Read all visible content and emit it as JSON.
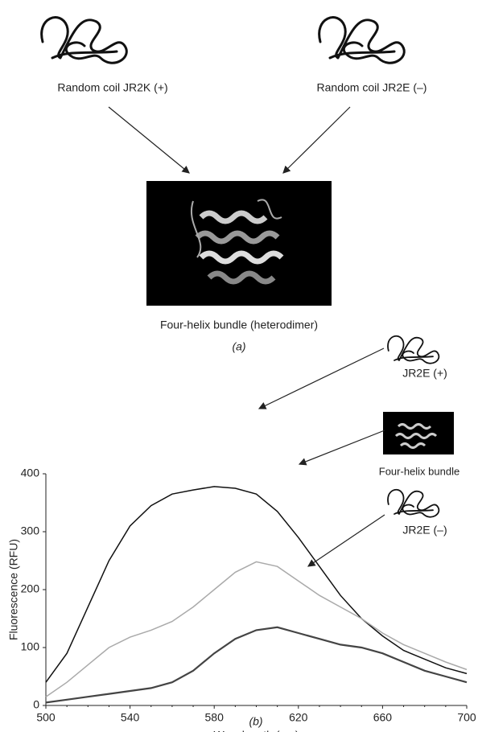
{
  "diagram": {
    "labels": [
      "Random coil JR2K (+)",
      "Random coil JR2E (–)",
      "Four-helix bundle (heterodimer)"
    ],
    "caption": "(a)"
  },
  "chart_data": {
    "type": "line",
    "x_label": "Wavelength (nm)",
    "y_label": "Fluorescence (RFU)",
    "annotations": [
      "JR2E (+)",
      "Four-helix bundle",
      "JR2E (–)"
    ],
    "caption": "(b)",
    "x": [
      500,
      510,
      520,
      530,
      540,
      550,
      560,
      570,
      580,
      590,
      600,
      610,
      620,
      630,
      640,
      650,
      660,
      670,
      680,
      690,
      700
    ],
    "series": [
      {
        "name": "JR2E (+)",
        "color": "#111111",
        "values": [
          40,
          90,
          170,
          250,
          310,
          345,
          365,
          372,
          378,
          375,
          365,
          335,
          290,
          240,
          190,
          150,
          120,
          95,
          80,
          65,
          55
        ]
      },
      {
        "name": "Four-helix bundle",
        "color": "#aaaaaa",
        "values": [
          15,
          40,
          70,
          100,
          118,
          130,
          145,
          170,
          200,
          230,
          248,
          240,
          215,
          190,
          170,
          150,
          125,
          105,
          90,
          75,
          62
        ]
      },
      {
        "name": "JR2E (–)",
        "color": "#444444",
        "values": [
          5,
          10,
          15,
          20,
          25,
          30,
          40,
          60,
          90,
          115,
          130,
          135,
          125,
          115,
          105,
          100,
          90,
          75,
          60,
          50,
          40
        ]
      }
    ],
    "xlim": [
      500,
      700
    ],
    "ylim": [
      0,
      400
    ],
    "xticks": [
      500,
      540,
      580,
      620,
      660,
      700
    ],
    "yticks": [
      0,
      100,
      200,
      300,
      400
    ],
    "grid": false
  }
}
